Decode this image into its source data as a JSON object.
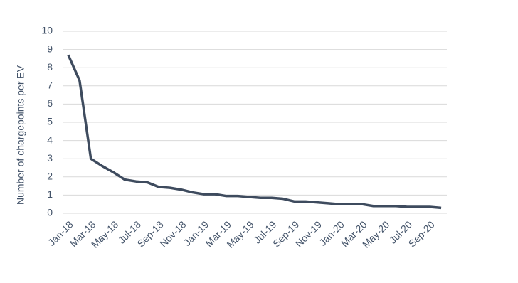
{
  "chart_data": {
    "type": "line",
    "y_label": "Number of chargepoints per EV",
    "categories": [
      "Jan-18",
      null,
      "Mar-18",
      null,
      "May-18",
      null,
      "Jul-18",
      null,
      "Sep-18",
      null,
      "Nov-18",
      null,
      "Jan-19",
      null,
      "Mar-19",
      null,
      "May-19",
      null,
      "Jul-19",
      null,
      "Sep-19",
      null,
      "Nov-19",
      null,
      "Jan-20",
      null,
      "Mar-20",
      null,
      "May-20",
      null,
      "Jul-20",
      null,
      "Sep-20",
      null
    ],
    "series": [
      {
        "name": "Chargepoints per EV",
        "color": "#3e4b5e",
        "values": [
          8.7,
          7.3,
          3.0,
          2.6,
          2.25,
          1.85,
          1.75,
          1.7,
          1.45,
          1.4,
          1.3,
          1.15,
          1.05,
          1.05,
          0.95,
          0.95,
          0.9,
          0.85,
          0.85,
          0.8,
          0.65,
          0.65,
          0.6,
          0.55,
          0.5,
          0.5,
          0.5,
          0.4,
          0.4,
          0.4,
          0.35,
          0.35,
          0.35,
          0.3
        ]
      }
    ],
    "ylim": [
      0,
      10
    ],
    "yticks": [
      0,
      1,
      2,
      3,
      4,
      5,
      6,
      7,
      8,
      9,
      10
    ],
    "grid": true
  }
}
